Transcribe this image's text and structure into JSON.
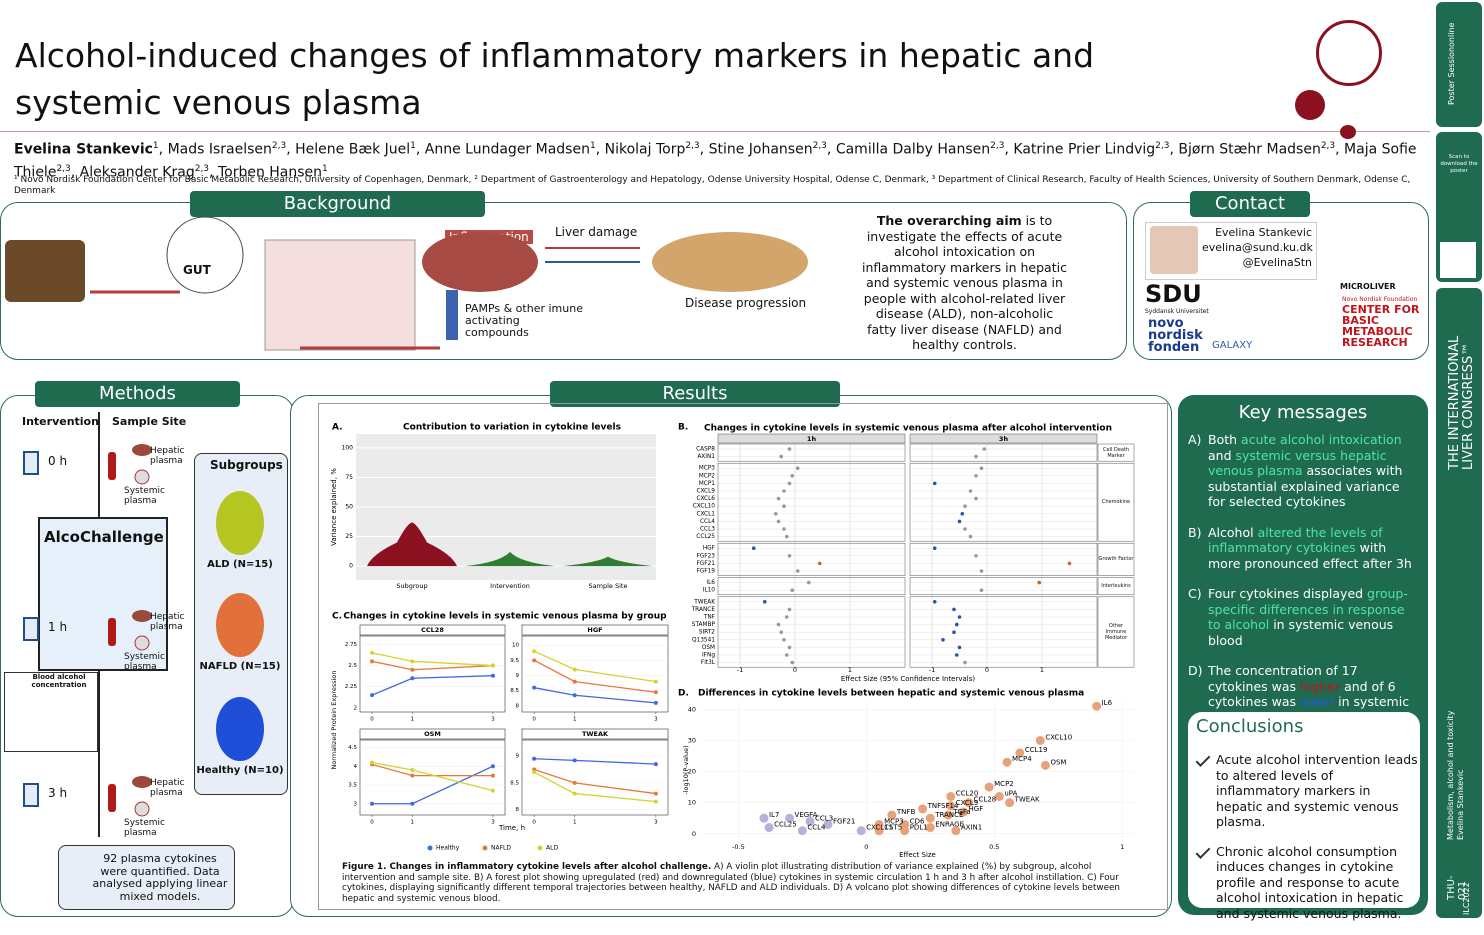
{
  "header": {
    "title": "Alcohol-induced changes of inflammatory markers in hepatic and systemic venous plasma",
    "separator": ", ",
    "authors": [
      {
        "name": "Evelina Stankevic",
        "aff": "1"
      },
      {
        "name": "Mads Israelsen",
        "aff": "2,3"
      },
      {
        "name": "Helene Bæk Juel",
        "aff": "1"
      },
      {
        "name": "Anne Lundager Madsen",
        "aff": "1"
      },
      {
        "name": "Nikolaj Torp",
        "aff": "2,3"
      },
      {
        "name": "Stine Johansen",
        "aff": "2,3"
      },
      {
        "name": "Camilla Dalby Hansen",
        "aff": "2,3"
      },
      {
        "name": "Katrine Prier Lindvig",
        "aff": "2,3"
      },
      {
        "name": "Bjørn Stæhr Madsen",
        "aff": "2,3"
      },
      {
        "name": "Maja Sofie Thiele",
        "aff": "2,3"
      },
      {
        "name": "Aleksander Krag",
        "aff": "2,3"
      },
      {
        "name": "Torben Hansen",
        "aff": "1"
      }
    ],
    "affiliations": "¹ Novo Nordisk Foundation Center for Basic Metabolic Research, University of Copenhagen, Denmark, ² Department of Gastroenterology and Hepatology, Odense University Hospital, Odense C, Denmark, ³ Department of Clinical Research, Faculty of Health Sciences, University of Southern Denmark, Odense C, Denmark"
  },
  "background": {
    "heading": "Background",
    "gut": "GUT",
    "inflammation": "Inflammation",
    "liver_damage": "Liver damage",
    "pamps": "PAMPs & other imune activating compounds",
    "progression": "Disease progression",
    "aim_bold": "The overarching aim",
    "aim": " is to investigate the effects of acute alcohol intoxication on inflammatory markers in hepatic and systemic venous plasma in people with alcohol-related liver disease (ALD), non-alcoholic fatty liver disease (NAFLD) and healthy controls."
  },
  "contact": {
    "heading": "Contact",
    "name": "Evelina Stankevic",
    "email": "evelina@sund.ku.dk",
    "twitter": "@EvelinaStn",
    "sdu": "SDU",
    "sdu_sub": "Syddansk Universitet",
    "novo": "novo nordisk fonden",
    "galaxy": "GALAXY",
    "microliver": "MICROLIVER",
    "nnf": "Novo Nordisk Foundation",
    "cbmr": "CENTER FOR BASIC METABOLIC RESEARCH"
  },
  "methods": {
    "heading": "Methods",
    "intervention": "Intervention",
    "sample_site": "Sample Site",
    "times": [
      "0 h",
      "1 h",
      "3 h"
    ],
    "hepatic": "Hepatic plasma",
    "systemic": "Systemic plasma",
    "alcochallenge": "AlcoChallenge",
    "subgroups": "Subgroups",
    "groups": [
      "ALD (N=15)",
      "NAFLD (N=15)",
      "Healthy (N=10)"
    ],
    "bac": "Blood alcohol concentration",
    "note": "92 plasma cytokines were quantified. Data analysed applying linear mixed models."
  },
  "results": {
    "heading": "Results",
    "panel_a": {
      "letter": "A.",
      "title": "Contribution to variation in cytokine levels",
      "ylabel": "Variance explained, %",
      "ylim": [
        -5,
        105
      ],
      "yticks": [
        0,
        25,
        50,
        75,
        100
      ],
      "categories": [
        "Subgroup",
        "Intervention",
        "Sample Site"
      ]
    },
    "panel_b": {
      "letter": "B.",
      "title": "Changes in cytokine levels in systemic venous plasma after alcohol intervention",
      "facets": [
        "1h",
        "3h"
      ],
      "xlabel": "Effect Size (95% Confidence Intervals)",
      "xlim": [
        -1.4,
        2.0
      ],
      "xticks": [
        -1,
        0,
        1
      ],
      "groups": [
        {
          "name": "Cell Death Marker",
          "cytokines": [
            "CASP8",
            "AXIN1"
          ],
          "h1": [
            -0.1,
            -0.25
          ],
          "h3": [
            -0.05,
            -0.2
          ]
        },
        {
          "name": "Chemokine",
          "cytokines": [
            "MCP3",
            "MCP2",
            "MCP1",
            "CXCL9",
            "CXCL6",
            "CXCL10",
            "CXCL1",
            "CCL4",
            "CCL3",
            "CCL25"
          ],
          "h1": [
            0.05,
            -0.05,
            -0.1,
            -0.2,
            -0.3,
            -0.2,
            -0.35,
            -0.3,
            -0.2,
            -0.15
          ],
          "h3": [
            -0.1,
            -0.2,
            -0.95,
            -0.3,
            -0.2,
            -0.4,
            -0.45,
            -0.5,
            -0.4,
            -0.3
          ]
        },
        {
          "name": "Growth Factor",
          "cytokines": [
            "HGF",
            "FGF23",
            "FGF21",
            "FGF19"
          ],
          "h1": [
            -0.75,
            -0.1,
            0.45,
            0.05
          ],
          "h3": [
            -0.95,
            -0.2,
            1.5,
            -0.1
          ]
        },
        {
          "name": "Interleukins",
          "cytokines": [
            "IL6",
            "IL10"
          ],
          "h1": [
            0.25,
            -0.05
          ],
          "h3": [
            0.95,
            -0.1
          ]
        },
        {
          "name": "Other Immune Mediator",
          "cytokines": [
            "TWEAK",
            "TRANCE",
            "TNF",
            "STAMBP",
            "SIRT2",
            "Q13541",
            "OSM",
            "IFNg",
            "Flt3L"
          ],
          "h1": [
            -0.55,
            -0.1,
            -0.15,
            -0.3,
            -0.25,
            -0.2,
            -0.1,
            -0.15,
            -0.05
          ],
          "h3": [
            -0.95,
            -0.6,
            -0.5,
            -0.55,
            -0.6,
            -0.8,
            -0.5,
            -0.55,
            -0.4
          ]
        }
      ]
    },
    "panel_c": {
      "letter": "C.",
      "title": "Changes in cytokine levels in systemic venous plasma by group",
      "ylabel": "Normalized Protein Expression",
      "xlabel": "Time, h",
      "x": [
        0,
        1,
        3
      ],
      "xlim": [
        -0.2,
        3.2
      ],
      "xticks": [
        0,
        1,
        3
      ],
      "groups": [
        {
          "name": "Healthy",
          "color": "#4169e1"
        },
        {
          "name": "NAFLD",
          "color": "#e8773a"
        },
        {
          "name": "ALD",
          "color": "#d4d42e"
        }
      ],
      "facets": [
        {
          "name": "CCL28",
          "ylim": [
            1.95,
            2.85
          ],
          "yticks": [
            2.0,
            2.25,
            2.5,
            2.75
          ],
          "series": [
            [
              2.15,
              2.35,
              2.38
            ],
            [
              2.55,
              2.45,
              2.5
            ],
            [
              2.65,
              2.55,
              2.5
            ]
          ]
        },
        {
          "name": "HGF",
          "ylim": [
            7.8,
            10.3
          ],
          "yticks": [
            8.0,
            8.5,
            9.0,
            9.5,
            10.0
          ],
          "series": [
            [
              8.6,
              8.35,
              8.1
            ],
            [
              9.5,
              8.8,
              8.45
            ],
            [
              9.8,
              9.2,
              8.8
            ]
          ]
        },
        {
          "name": "OSM",
          "ylim": [
            2.7,
            4.7
          ],
          "yticks": [
            3.0,
            3.5,
            4.0,
            4.5
          ],
          "series": [
            [
              3.0,
              3.0,
              4.0
            ],
            [
              4.05,
              3.75,
              3.75
            ],
            [
              4.1,
              3.9,
              3.35
            ]
          ]
        },
        {
          "name": "TWEAK",
          "ylim": [
            7.9,
            9.3
          ],
          "yticks": [
            8.0,
            8.5,
            9.0
          ],
          "series": [
            [
              8.95,
              8.92,
              8.85
            ],
            [
              8.75,
              8.5,
              8.3
            ],
            [
              8.7,
              8.3,
              8.15
            ]
          ]
        }
      ]
    },
    "panel_d": {
      "letter": "D.",
      "title": "Differences in cytokine levels between hepatic and systemic venous plasma",
      "xlabel": "Effect Size",
      "ylabel": "-log10(P-value)",
      "xlim": [
        -0.65,
        1.05
      ],
      "ylim": [
        -2,
        43
      ],
      "xticks": [
        -0.5,
        0.0,
        0.5,
        1.0
      ],
      "yticks": [
        0,
        10,
        20,
        30,
        40
      ],
      "up_color": "#e8a27a",
      "down_color": "#b8b0d8",
      "labels": [
        "IL6",
        "CXCL10",
        "CCL19",
        "MCP4",
        "OSM",
        "MCP2",
        "uPA",
        "CCL20",
        "CCL28",
        "TWEAK",
        "CXCL9",
        "HGF",
        "TNFSF14",
        "TGFa",
        "TRANCE",
        "TNFB",
        "CD6",
        "ENRAGE",
        "MCP3",
        "PDL1",
        "CST5",
        "CXCL11",
        "AXIN1",
        "FGF21",
        "VEGFA",
        "CCL3",
        "IL7",
        "CCL25",
        "CCL4"
      ],
      "x": [
        0.9,
        0.68,
        0.6,
        0.55,
        0.7,
        0.48,
        0.52,
        0.33,
        0.4,
        0.56,
        0.33,
        0.38,
        0.22,
        0.32,
        0.25,
        0.1,
        0.15,
        0.25,
        0.05,
        0.15,
        0.05,
        -0.02,
        0.35,
        -0.15,
        -0.3,
        -0.22,
        -0.4,
        -0.38,
        -0.25
      ],
      "y": [
        41,
        30,
        26,
        23,
        22,
        15,
        12,
        12,
        10,
        10,
        9,
        7,
        8,
        6,
        5,
        6,
        3,
        2,
        3,
        1,
        1,
        1,
        1,
        3,
        5,
        4,
        5,
        2,
        1
      ]
    },
    "caption_bold": "Figure 1. Changes in inflammatory cytokine levels after alcohol challenge.",
    "caption": " A) A violin plot illustrating distribution of variance explained (%) by subgroup, alcohol intervention and sample site. B) A forest plot showing upregulated (red) and downregulated (blue) cytokines in systemic circulation 1 h and 3 h after alcohol instillation. C) Four cytokines, displaying significantly different temporal trajectories between healthy, NAFLD and ALD individuals. D) A volcano plot showing differences of cytokine levels between hepatic and systemic venous blood."
  },
  "key_messages": {
    "heading": "Key messages",
    "items": [
      {
        "letter": "A)",
        "parts": [
          {
            "text": "Both "
          },
          {
            "text": "acute alcohol intoxication",
            "color": "#4fe3a8"
          },
          {
            "text": " and "
          },
          {
            "text": "systemic versus hepatic venous plasma",
            "color": "#4fe3a8"
          },
          {
            "text": " associates with substantial explained variance for selected cytokines"
          }
        ]
      },
      {
        "letter": "B)",
        "parts": [
          {
            "text": "Alcohol "
          },
          {
            "text": "altered the levels of inflammatory cytokines",
            "color": "#4fe3a8"
          },
          {
            "text": " with more pronounced effect after 3h"
          }
        ]
      },
      {
        "letter": "C)",
        "parts": [
          {
            "text": "Four cytokines displayed "
          },
          {
            "text": "group-specific differences in response to alcohol",
            "color": "#4fe3a8"
          },
          {
            "text": " in systemic venous blood"
          }
        ]
      },
      {
        "letter": "D)",
        "parts": [
          {
            "text": "The concentration of 17 cytokines was "
          },
          {
            "text": "higher",
            "color": "#c0141c"
          },
          {
            "text": " and of 6 cytokines was "
          },
          {
            "text": "lower",
            "color": "#2457e0"
          },
          {
            "text": " in systemic compared to hepatic venous blood"
          }
        ]
      }
    ]
  },
  "conclusions": {
    "heading": "Conclusions",
    "items": [
      "Acute alcohol intervention leads to altered levels of inflammatory markers in hepatic and systemic venous plasma.",
      "Chronic alcohol consumption induces changes in cytokine profile and response to acute alcohol intoxication in hepatic and systemic venous plasma."
    ]
  },
  "sidebar": {
    "poster": "Poster Sessiononline",
    "scan": "Scan to download the poster",
    "congress": "THE INTERNATIONAL LIVER CONGRESS™",
    "topic": "Metabolism, alcohol and toxicity",
    "author": "Evelina Stankevic",
    "code": "THU-021",
    "ilc": "ILC2022"
  }
}
